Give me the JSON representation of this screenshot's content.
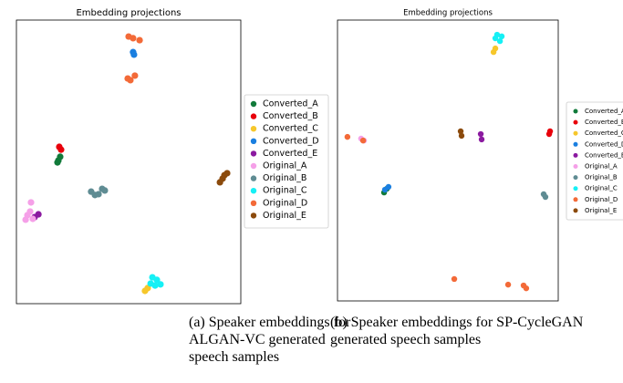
{
  "chart_data": [
    {
      "type": "scatter",
      "title": "Embedding projections",
      "xlim": [
        0,
        100
      ],
      "ylim": [
        0,
        100
      ],
      "series": [
        {
          "name": "Converted_A",
          "color": "#117a3a",
          "x": [
            18.7,
            19.5,
            18.3
          ],
          "values": [
            50.5,
            51.8,
            49.8
          ]
        },
        {
          "name": "Converted_B",
          "color": "#e8000b",
          "x": [
            19.1,
            19.9
          ],
          "values": [
            55.3,
            54.3
          ]
        },
        {
          "name": "Converted_C",
          "color": "#f6c72b",
          "x": [
            57.3,
            58.5
          ],
          "values": [
            4.5,
            5.5
          ]
        },
        {
          "name": "Converted_D",
          "color": "#1a7fe0",
          "x": [
            52.0,
            52.4
          ],
          "values": [
            88.7,
            87.8
          ]
        },
        {
          "name": "Converted_E",
          "color": "#8b1aa0",
          "x": [
            9.8,
            8.1
          ],
          "values": [
            31.5,
            30.5
          ]
        },
        {
          "name": "Original_A",
          "color": "#f5a0e8",
          "x": [
            6.5,
            4.9,
            7.3,
            4.1,
            6.1
          ],
          "values": [
            35.7,
            31.2,
            29.9,
            29.6,
            32.5
          ]
        },
        {
          "name": "Original_B",
          "color": "#5f8c93",
          "x": [
            33.3,
            36.6,
            38.2,
            39.4,
            35.0
          ],
          "values": [
            39.5,
            38.6,
            40.5,
            39.9,
            38.3
          ]
        },
        {
          "name": "Original_C",
          "color": "#16f0f5",
          "x": [
            60.6,
            62.6,
            64.2,
            59.8,
            61.8
          ],
          "values": [
            9.3,
            8.4,
            6.8,
            7.1,
            6.4
          ]
        },
        {
          "name": "Original_D",
          "color": "#f36a38",
          "x": [
            50.0,
            52.0,
            54.9,
            49.6,
            52.8,
            50.8
          ],
          "values": [
            94.2,
            93.6,
            92.9,
            79.4,
            80.4,
            78.8
          ]
        },
        {
          "name": "Original_E",
          "color": "#8b4a0c",
          "x": [
            90.7,
            92.7,
            93.9,
            91.9
          ],
          "values": [
            42.8,
            45.3,
            46.0,
            44.1
          ]
        }
      ]
    },
    {
      "type": "scatter",
      "title": "Embedding projections",
      "xlim": [
        0,
        100
      ],
      "ylim": [
        0,
        100
      ],
      "series": [
        {
          "name": "Converted_A",
          "color": "#117a3a",
          "x": [
            21.1,
            22.3
          ],
          "values": [
            38.6,
            39.9
          ]
        },
        {
          "name": "Converted_B",
          "color": "#e8000b",
          "x": [
            96.3,
            95.9
          ],
          "values": [
            60.4,
            59.4
          ]
        },
        {
          "name": "Converted_C",
          "color": "#f6c72b",
          "x": [
            70.7,
            71.5
          ],
          "values": [
            88.6,
            89.9
          ]
        },
        {
          "name": "Converted_D",
          "color": "#1a7fe0",
          "x": [
            21.5,
            23.1
          ],
          "values": [
            39.6,
            40.6
          ]
        },
        {
          "name": "Converted_E",
          "color": "#8b1aa0",
          "x": [
            64.9,
            65.3
          ],
          "values": [
            59.4,
            57.5
          ]
        },
        {
          "name": "Original_A",
          "color": "#f5a0e8",
          "x": [
            10.7,
            12.0
          ],
          "values": [
            57.8,
            57.1
          ]
        },
        {
          "name": "Original_B",
          "color": "#5f8c93",
          "x": [
            93.4,
            94.2
          ],
          "values": [
            38.0,
            37.0
          ]
        },
        {
          "name": "Original_C",
          "color": "#16f0f5",
          "x": [
            71.5,
            73.6,
            72.3,
            74.4
          ],
          "values": [
            93.5,
            92.5,
            94.8,
            94.2
          ]
        },
        {
          "name": "Original_D",
          "color": "#f36a38",
          "x": [
            4.5,
            11.6,
            52.9,
            77.3,
            84.3,
            85.5
          ],
          "values": [
            58.4,
            57.1,
            7.8,
            5.8,
            5.5,
            4.5
          ]
        },
        {
          "name": "Original_E",
          "color": "#8b4a0c",
          "x": [
            55.8,
            56.2
          ],
          "values": [
            60.4,
            58.8
          ]
        }
      ]
    }
  ],
  "captions": [
    "(a) Speaker embeddings for ALGAN-VC generated speech samples",
    "(b) Speaker embeddings for SP-CycleGAN generated speech samples"
  ]
}
